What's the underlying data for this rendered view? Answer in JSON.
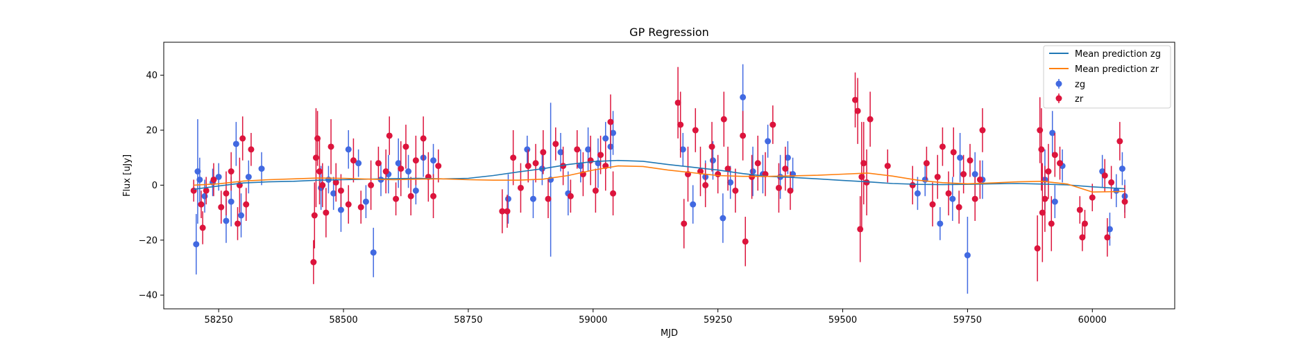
{
  "chart_data": {
    "type": "scatter",
    "title": "GP Regression",
    "xlabel": "MJD",
    "ylabel": "Flux [uJy]",
    "xlim": [
      58140,
      60165
    ],
    "ylim": [
      -45,
      52
    ],
    "xticks": [
      58250,
      58500,
      58750,
      59000,
      59250,
      59500,
      59750,
      60000
    ],
    "yticks": [
      -40,
      -20,
      0,
      20,
      40
    ],
    "grid": false,
    "legend_position": "top-right",
    "legend": [
      "Mean prediction zg",
      "Mean prediction zr",
      "zg",
      "zr"
    ],
    "colors": {
      "zg_line": "#1f77b4",
      "zr_line": "#ff7f0e",
      "zg_points": "#4169e1",
      "zr_points": "#dc143c"
    },
    "lines": [
      {
        "name": "Mean prediction zg",
        "x": [
          58200,
          58250,
          58300,
          58350,
          58400,
          58450,
          58500,
          58550,
          58600,
          58650,
          58700,
          58750,
          58800,
          58850,
          58900,
          58950,
          59000,
          59050,
          59100,
          59150,
          59200,
          59250,
          59300,
          59350,
          59400,
          59450,
          59500,
          59550,
          59600,
          59650,
          59700,
          59750,
          59800,
          59850,
          59900,
          59950,
          60000,
          60065
        ],
        "y": [
          -1.5,
          -0.3,
          0.8,
          1.2,
          1.4,
          1.8,
          2.0,
          2.2,
          2.4,
          2.5,
          2.3,
          2.5,
          3.5,
          4.8,
          6.0,
          7.5,
          8.6,
          9.0,
          8.7,
          7.5,
          6.5,
          5.5,
          4.2,
          3.2,
          2.8,
          2.3,
          1.7,
          1.2,
          0.6,
          0.3,
          0.2,
          0.3,
          0.5,
          0.6,
          0.4,
          0.1,
          -0.6,
          -1.3
        ]
      },
      {
        "name": "Mean prediction zr",
        "x": [
          58200,
          58250,
          58300,
          58350,
          58400,
          58450,
          58500,
          58550,
          58600,
          58650,
          58700,
          58750,
          58800,
          58850,
          58900,
          58950,
          59000,
          59050,
          59100,
          59150,
          59200,
          59250,
          59300,
          59350,
          59400,
          59450,
          59500,
          59550,
          59600,
          59650,
          59700,
          59750,
          59800,
          59850,
          59900,
          59950,
          60000,
          60065
        ],
        "y": [
          0.0,
          0.5,
          1.5,
          2.0,
          2.3,
          2.6,
          2.5,
          2.2,
          2.0,
          2.2,
          2.3,
          2.0,
          1.8,
          1.8,
          2.2,
          3.5,
          5.5,
          7.0,
          6.8,
          5.5,
          4.5,
          3.5,
          3.2,
          3.2,
          3.4,
          3.6,
          4.0,
          4.4,
          3.3,
          1.8,
          0.9,
          0.5,
          0.8,
          1.2,
          1.4,
          0.4,
          -2.5,
          -2.3
        ]
      }
    ],
    "series": [
      {
        "name": "zg",
        "points": [
          [
            58205,
            -21.5,
            11
          ],
          [
            58208,
            5,
            19
          ],
          [
            58212,
            2,
            8
          ],
          [
            58222,
            -4,
            6
          ],
          [
            58238,
            1,
            5
          ],
          [
            58250,
            3,
            5
          ],
          [
            58265,
            -13,
            8
          ],
          [
            58275,
            -6,
            9
          ],
          [
            58285,
            15,
            8
          ],
          [
            58295,
            -11,
            8
          ],
          [
            58310,
            3,
            6
          ],
          [
            58336,
            6,
            6
          ],
          [
            58455,
            -1,
            8
          ],
          [
            58470,
            2,
            5
          ],
          [
            58480,
            -3,
            6
          ],
          [
            58495,
            -9,
            8
          ],
          [
            58510,
            13,
            7
          ],
          [
            58530,
            8,
            5
          ],
          [
            58545,
            -6,
            6
          ],
          [
            58560,
            -24.5,
            9
          ],
          [
            58575,
            2,
            6
          ],
          [
            58590,
            4,
            7
          ],
          [
            58610,
            8,
            9
          ],
          [
            58630,
            5,
            6
          ],
          [
            58645,
            -2,
            5
          ],
          [
            58660,
            10,
            7
          ],
          [
            58680,
            9,
            6
          ],
          [
            58830,
            -5,
            9
          ],
          [
            58868,
            13,
            5
          ],
          [
            58880,
            -5,
            7
          ],
          [
            58898,
            6,
            6
          ],
          [
            58915,
            2,
            28
          ],
          [
            58935,
            12,
            7
          ],
          [
            58950,
            -3,
            8
          ],
          [
            58975,
            7,
            6
          ],
          [
            58990,
            13,
            8
          ],
          [
            59010,
            8,
            9
          ],
          [
            59025,
            17,
            6
          ],
          [
            59035,
            14,
            8
          ],
          [
            59040,
            19,
            8
          ],
          [
            59180,
            13,
            6
          ],
          [
            59200,
            -7,
            7
          ],
          [
            59225,
            3,
            6
          ],
          [
            59240,
            9,
            7
          ],
          [
            59260,
            -12,
            9
          ],
          [
            59275,
            1,
            6
          ],
          [
            59300,
            32,
            12
          ],
          [
            59320,
            5,
            9
          ],
          [
            59340,
            4,
            7
          ],
          [
            59350,
            16,
            6
          ],
          [
            59375,
            3,
            8
          ],
          [
            59390,
            10,
            6
          ],
          [
            59400,
            4,
            6
          ],
          [
            59650,
            -3,
            6
          ],
          [
            59665,
            2,
            6
          ],
          [
            59695,
            -14,
            6
          ],
          [
            59720,
            -5,
            8
          ],
          [
            59735,
            10,
            9
          ],
          [
            59750,
            -25.5,
            14
          ],
          [
            59765,
            4,
            8
          ],
          [
            59780,
            2,
            7
          ],
          [
            59905,
            2,
            11
          ],
          [
            59920,
            19,
            8
          ],
          [
            59925,
            -6,
            6
          ],
          [
            59940,
            7,
            6
          ],
          [
            60020,
            5,
            6
          ],
          [
            60035,
            -16,
            6
          ],
          [
            60048,
            -2,
            6
          ],
          [
            60060,
            6,
            6
          ],
          [
            60065,
            -4,
            6
          ]
        ]
      },
      {
        "name": "zr",
        "points": [
          [
            58200,
            -2,
            4
          ],
          [
            58215,
            -7,
            5
          ],
          [
            58218,
            -15.5,
            6
          ],
          [
            58225,
            -2,
            5
          ],
          [
            58240,
            2,
            6
          ],
          [
            58255,
            -8,
            6
          ],
          [
            58265,
            -3,
            8
          ],
          [
            58275,
            5,
            7
          ],
          [
            58288,
            -14,
            6
          ],
          [
            58292,
            0,
            10
          ],
          [
            58298,
            17,
            8
          ],
          [
            58305,
            -7,
            6
          ],
          [
            58315,
            13,
            6
          ],
          [
            58440,
            -28,
            8
          ],
          [
            58442,
            -11,
            12
          ],
          [
            58445,
            10,
            18
          ],
          [
            58448,
            17,
            10
          ],
          [
            58452,
            5,
            12
          ],
          [
            58458,
            0,
            8
          ],
          [
            58465,
            -10,
            9
          ],
          [
            58475,
            14,
            10
          ],
          [
            58485,
            1,
            7
          ],
          [
            58495,
            -2,
            6
          ],
          [
            58510,
            -7,
            7
          ],
          [
            58520,
            9,
            8
          ],
          [
            58535,
            -8,
            6
          ],
          [
            58555,
            0,
            9
          ],
          [
            58570,
            8,
            6
          ],
          [
            58585,
            5,
            8
          ],
          [
            58592,
            18,
            7
          ],
          [
            58605,
            -5,
            6
          ],
          [
            58615,
            6,
            10
          ],
          [
            58625,
            14,
            8
          ],
          [
            58635,
            -4,
            7
          ],
          [
            58645,
            9,
            9
          ],
          [
            58660,
            17,
            8
          ],
          [
            58670,
            3,
            9
          ],
          [
            58680,
            -4,
            8
          ],
          [
            58690,
            7,
            6
          ],
          [
            58818,
            -9.5,
            8
          ],
          [
            58828,
            -9.5,
            6
          ],
          [
            58840,
            10,
            10
          ],
          [
            58855,
            -1,
            9
          ],
          [
            58870,
            7,
            6
          ],
          [
            58885,
            8,
            7
          ],
          [
            58900,
            12,
            8
          ],
          [
            58910,
            -5,
            7
          ],
          [
            58925,
            15,
            6
          ],
          [
            58940,
            7,
            7
          ],
          [
            58955,
            -4,
            6
          ],
          [
            58968,
            13,
            7
          ],
          [
            58980,
            4,
            8
          ],
          [
            58995,
            9,
            9
          ],
          [
            59005,
            -2,
            8
          ],
          [
            59015,
            11,
            7
          ],
          [
            59025,
            7,
            9
          ],
          [
            59035,
            23,
            10
          ],
          [
            59040,
            -3,
            8
          ],
          [
            59170,
            30,
            13
          ],
          [
            59175,
            22,
            12
          ],
          [
            59182,
            -14,
            9
          ],
          [
            59190,
            4,
            10
          ],
          [
            59205,
            20,
            8
          ],
          [
            59215,
            5,
            9
          ],
          [
            59225,
            0,
            8
          ],
          [
            59238,
            14,
            9
          ],
          [
            59250,
            4,
            7
          ],
          [
            59262,
            24,
            10
          ],
          [
            59270,
            6,
            8
          ],
          [
            59285,
            -2,
            8
          ],
          [
            59300,
            18,
            9
          ],
          [
            59305,
            -20.5,
            9
          ],
          [
            59318,
            3,
            8
          ],
          [
            59330,
            8,
            10
          ],
          [
            59345,
            4,
            8
          ],
          [
            59360,
            22,
            7
          ],
          [
            59372,
            -1,
            9
          ],
          [
            59385,
            6,
            8
          ],
          [
            59395,
            -2,
            7
          ],
          [
            59525,
            31,
            10
          ],
          [
            59530,
            27,
            12
          ],
          [
            59535,
            -16,
            12
          ],
          [
            59538,
            3,
            20
          ],
          [
            59542,
            8,
            15
          ],
          [
            59548,
            1,
            12
          ],
          [
            59555,
            24,
            10
          ],
          [
            59590,
            7,
            6
          ],
          [
            59640,
            0,
            7
          ],
          [
            59668,
            8,
            6
          ],
          [
            59680,
            -7,
            8
          ],
          [
            59690,
            3,
            8
          ],
          [
            59700,
            14,
            7
          ],
          [
            59712,
            -3,
            8
          ],
          [
            59722,
            12,
            9
          ],
          [
            59733,
            -8,
            6
          ],
          [
            59742,
            4,
            7
          ],
          [
            59755,
            9,
            6
          ],
          [
            59765,
            -5,
            8
          ],
          [
            59775,
            2,
            7
          ],
          [
            59780,
            20,
            8
          ],
          [
            59890,
            -23,
            12
          ],
          [
            59895,
            20,
            12
          ],
          [
            59898,
            13,
            15
          ],
          [
            59900,
            -10,
            18
          ],
          [
            59905,
            -5,
            12
          ],
          [
            59912,
            5,
            10
          ],
          [
            59918,
            -14,
            10
          ],
          [
            59925,
            11,
            8
          ],
          [
            59935,
            8,
            6
          ],
          [
            59975,
            -9,
            5
          ],
          [
            59980,
            -19,
            5
          ],
          [
            59985,
            -14,
            5
          ],
          [
            60000,
            -4.5,
            5
          ],
          [
            60025,
            3.5,
            6
          ],
          [
            60030,
            -19,
            7
          ],
          [
            60038,
            1,
            6
          ],
          [
            60055,
            16,
            7
          ],
          [
            60065,
            -6,
            6
          ]
        ]
      }
    ]
  }
}
